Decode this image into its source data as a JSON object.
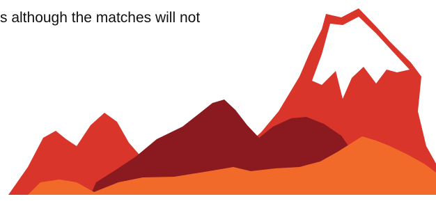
{
  "text": "s although the matches will not"
}
